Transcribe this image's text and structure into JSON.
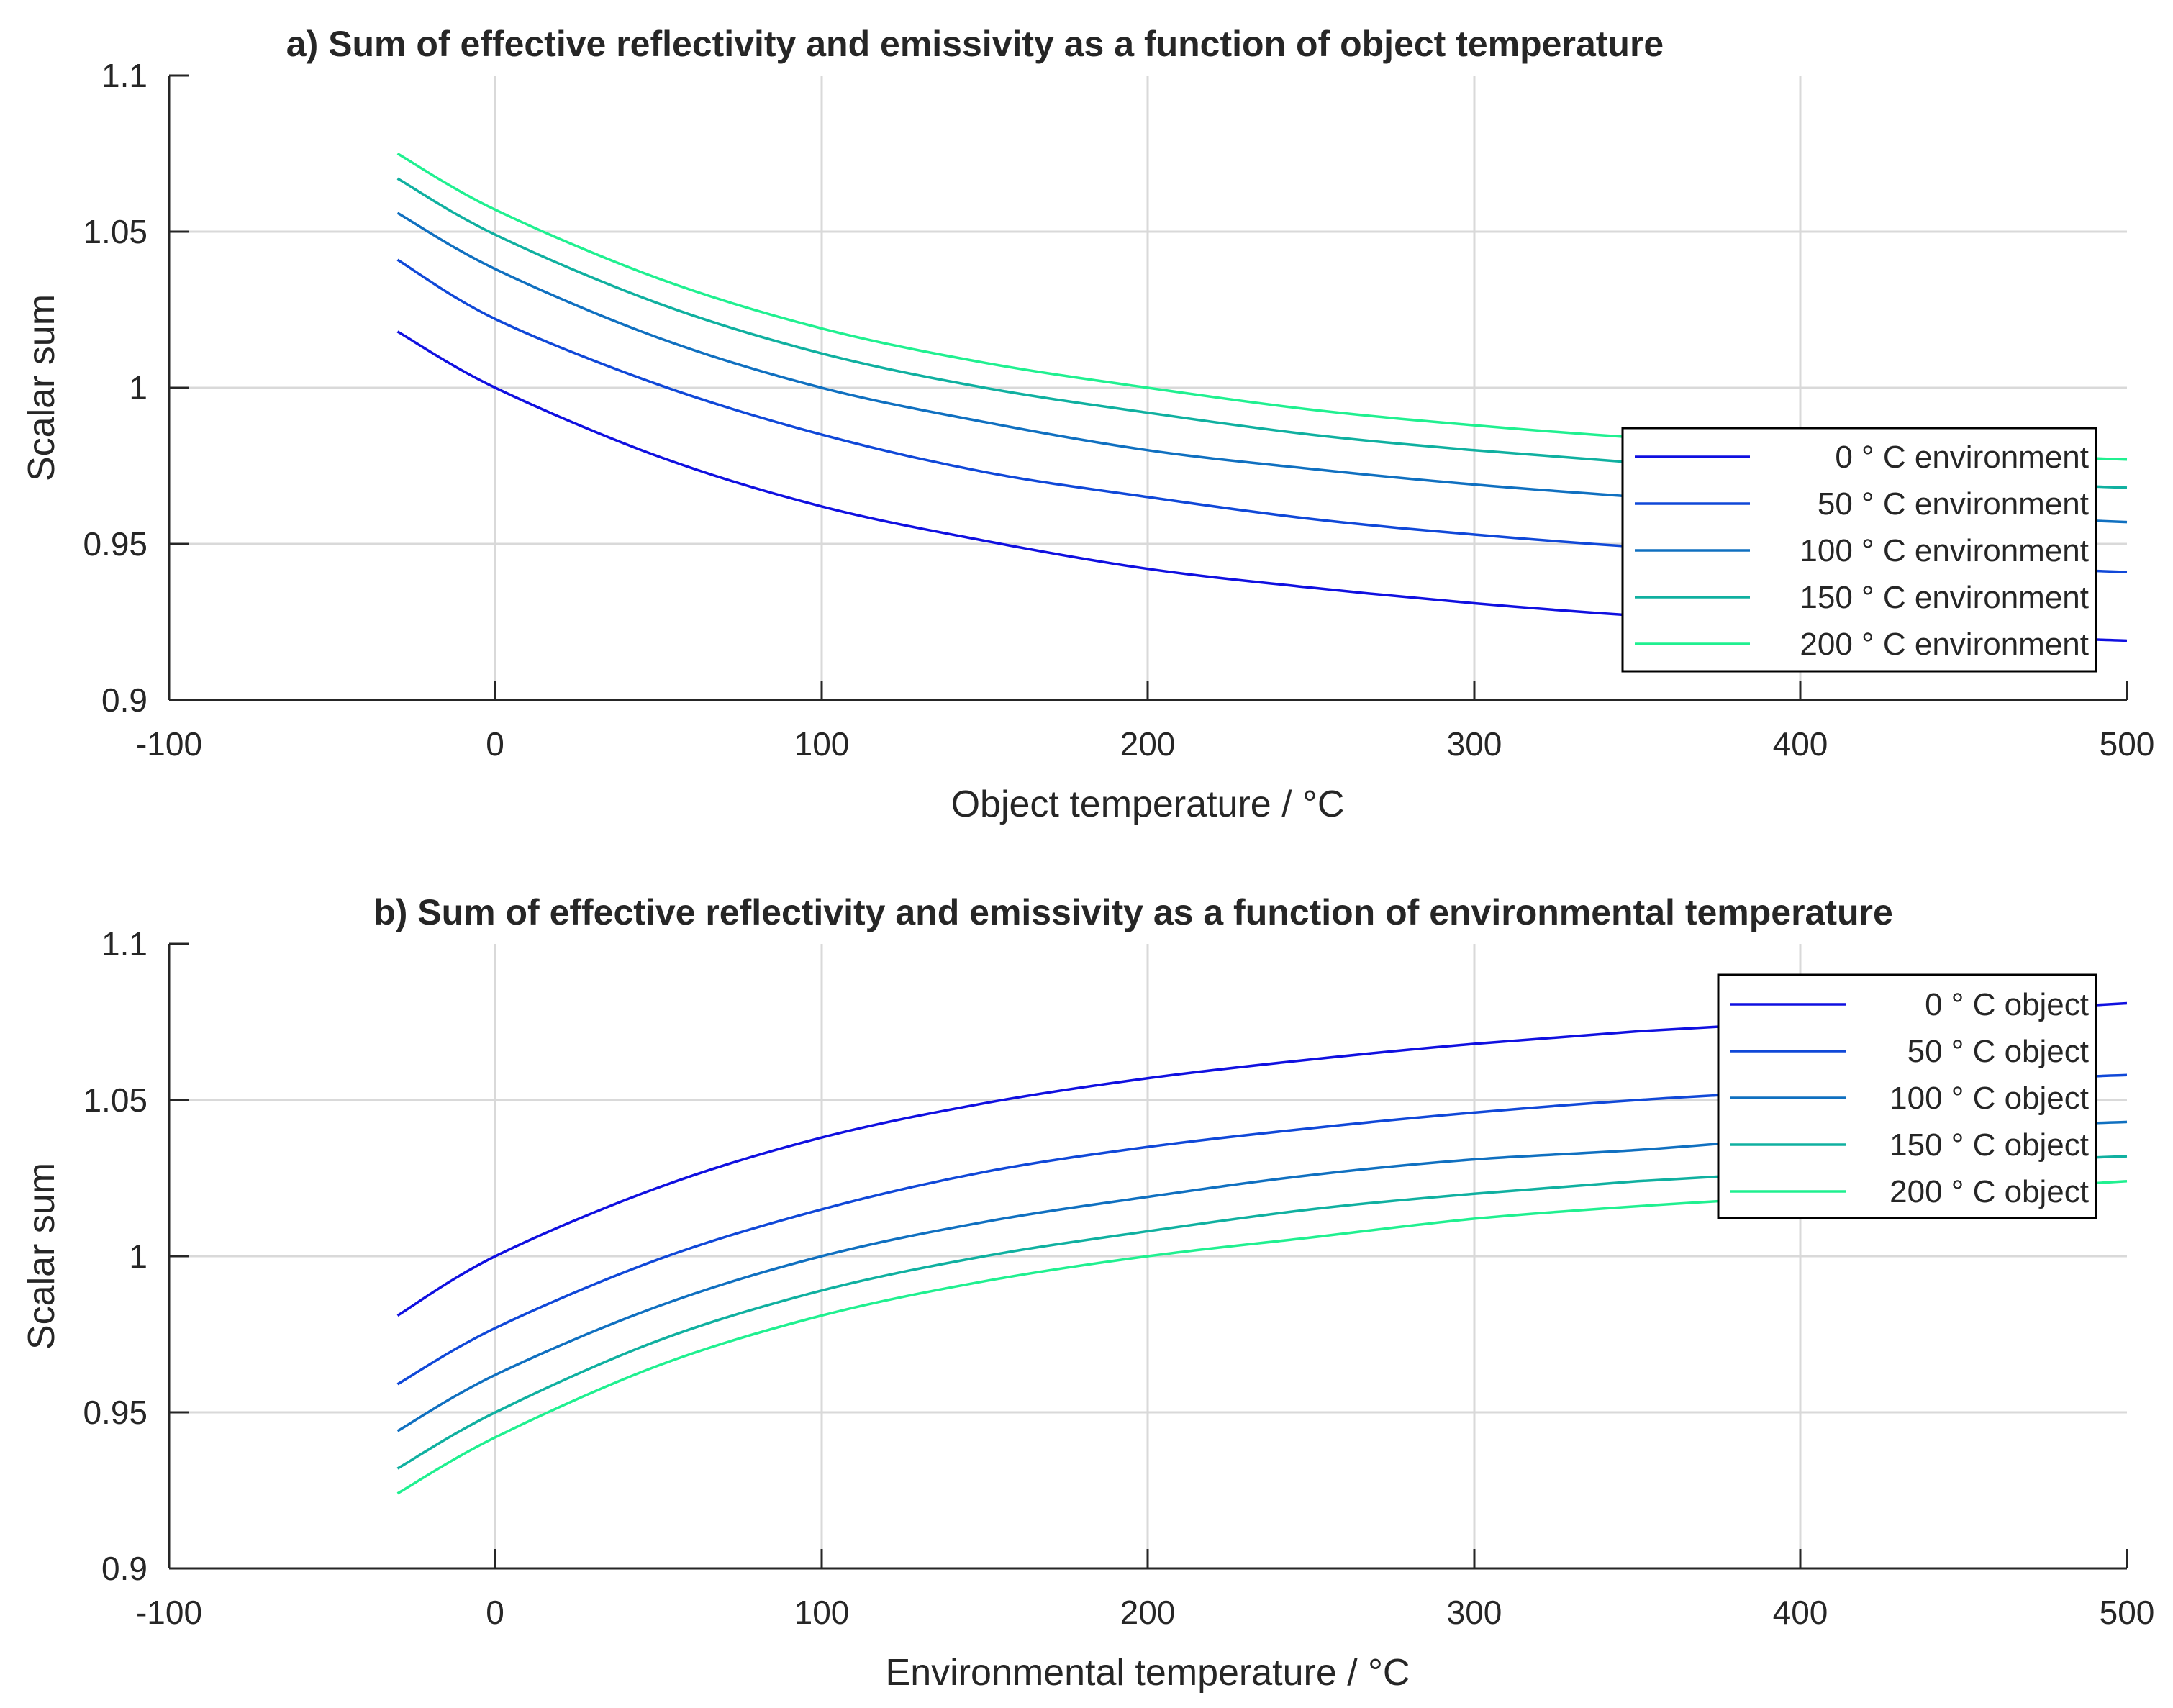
{
  "chart_data": [
    {
      "type": "line",
      "title": "a) Sum of effective reflectivity and emissivity as a function of object temperature",
      "xlabel": "Object temperature / °C",
      "ylabel": "Scalar sum",
      "xlim": [
        -100,
        500
      ],
      "ylim": [
        0.9,
        1.1
      ],
      "xticks": [
        -100,
        0,
        100,
        200,
        300,
        400,
        500
      ],
      "yticks": [
        0.9,
        0.95,
        1,
        1.05,
        1.1
      ],
      "xtick_labels": [
        "-100",
        "0",
        "100",
        "200",
        "300",
        "400",
        "500"
      ],
      "ytick_labels": [
        "0.9",
        "0.95",
        "1",
        "1.05",
        "1.1"
      ],
      "grid": true,
      "legend_position": "right",
      "x": [
        -30,
        0,
        50,
        100,
        150,
        200,
        250,
        300,
        350,
        400,
        450,
        500
      ],
      "series": [
        {
          "name": "0 ° C environment",
          "color": "#1010e0",
          "values": [
            1.018,
            1.0,
            0.978,
            0.962,
            0.951,
            0.942,
            0.936,
            0.931,
            0.927,
            0.924,
            0.921,
            0.919
          ]
        },
        {
          "name": "50 ° C environment",
          "color": "#1048d8",
          "values": [
            1.041,
            1.022,
            1.001,
            0.985,
            0.973,
            0.965,
            0.958,
            0.953,
            0.949,
            0.946,
            0.943,
            0.941
          ]
        },
        {
          "name": "100 ° C environment",
          "color": "#1070c0",
          "values": [
            1.056,
            1.038,
            1.016,
            1.0,
            0.989,
            0.98,
            0.974,
            0.969,
            0.965,
            0.961,
            0.959,
            0.957
          ]
        },
        {
          "name": "150 ° C environment",
          "color": "#10b0a0",
          "values": [
            1.067,
            1.049,
            1.027,
            1.011,
            1.0,
            0.992,
            0.985,
            0.98,
            0.976,
            0.973,
            0.97,
            0.968
          ]
        },
        {
          "name": "200 ° C environment",
          "color": "#20f090",
          "values": [
            1.075,
            1.057,
            1.035,
            1.019,
            1.008,
            1.0,
            0.993,
            0.988,
            0.984,
            0.981,
            0.979,
            0.977
          ]
        }
      ]
    },
    {
      "type": "line",
      "title": "b) Sum of effective reflectivity and emissivity as a function of environmental temperature",
      "xlabel": "Environmental temperature / °C",
      "ylabel": "Scalar sum",
      "xlim": [
        -100,
        500
      ],
      "ylim": [
        0.9,
        1.1
      ],
      "xticks": [
        -100,
        0,
        100,
        200,
        300,
        400,
        500
      ],
      "yticks": [
        0.9,
        0.95,
        1,
        1.05,
        1.1
      ],
      "xtick_labels": [
        "-100",
        "0",
        "100",
        "200",
        "300",
        "400",
        "500"
      ],
      "ytick_labels": [
        "0.9",
        "0.95",
        "1",
        "1.05",
        "1.1"
      ],
      "grid": true,
      "legend_position": "top-right",
      "x": [
        -30,
        0,
        50,
        100,
        150,
        200,
        250,
        300,
        350,
        400,
        450,
        500
      ],
      "series": [
        {
          "name": "0 ° C object",
          "color": "#1010e0",
          "values": [
            0.981,
            1.0,
            1.022,
            1.038,
            1.049,
            1.057,
            1.063,
            1.068,
            1.072,
            1.075,
            1.078,
            1.081
          ]
        },
        {
          "name": "50 ° C object",
          "color": "#1048d8",
          "values": [
            0.959,
            0.977,
            0.999,
            1.015,
            1.027,
            1.035,
            1.041,
            1.046,
            1.05,
            1.053,
            1.056,
            1.058
          ]
        },
        {
          "name": "100 ° C object",
          "color": "#1070c0",
          "values": [
            0.944,
            0.962,
            0.984,
            1.0,
            1.011,
            1.019,
            1.026,
            1.031,
            1.034,
            1.038,
            1.041,
            1.043
          ]
        },
        {
          "name": "150 ° C object",
          "color": "#10b0a0",
          "values": [
            0.932,
            0.95,
            0.973,
            0.989,
            1.0,
            1.008,
            1.015,
            1.02,
            1.024,
            1.027,
            1.03,
            1.032
          ]
        },
        {
          "name": "200 ° C object",
          "color": "#20f090",
          "values": [
            0.924,
            0.942,
            0.965,
            0.981,
            0.992,
            1.0,
            1.006,
            1.012,
            1.016,
            1.019,
            1.021,
            1.024
          ]
        }
      ]
    }
  ]
}
